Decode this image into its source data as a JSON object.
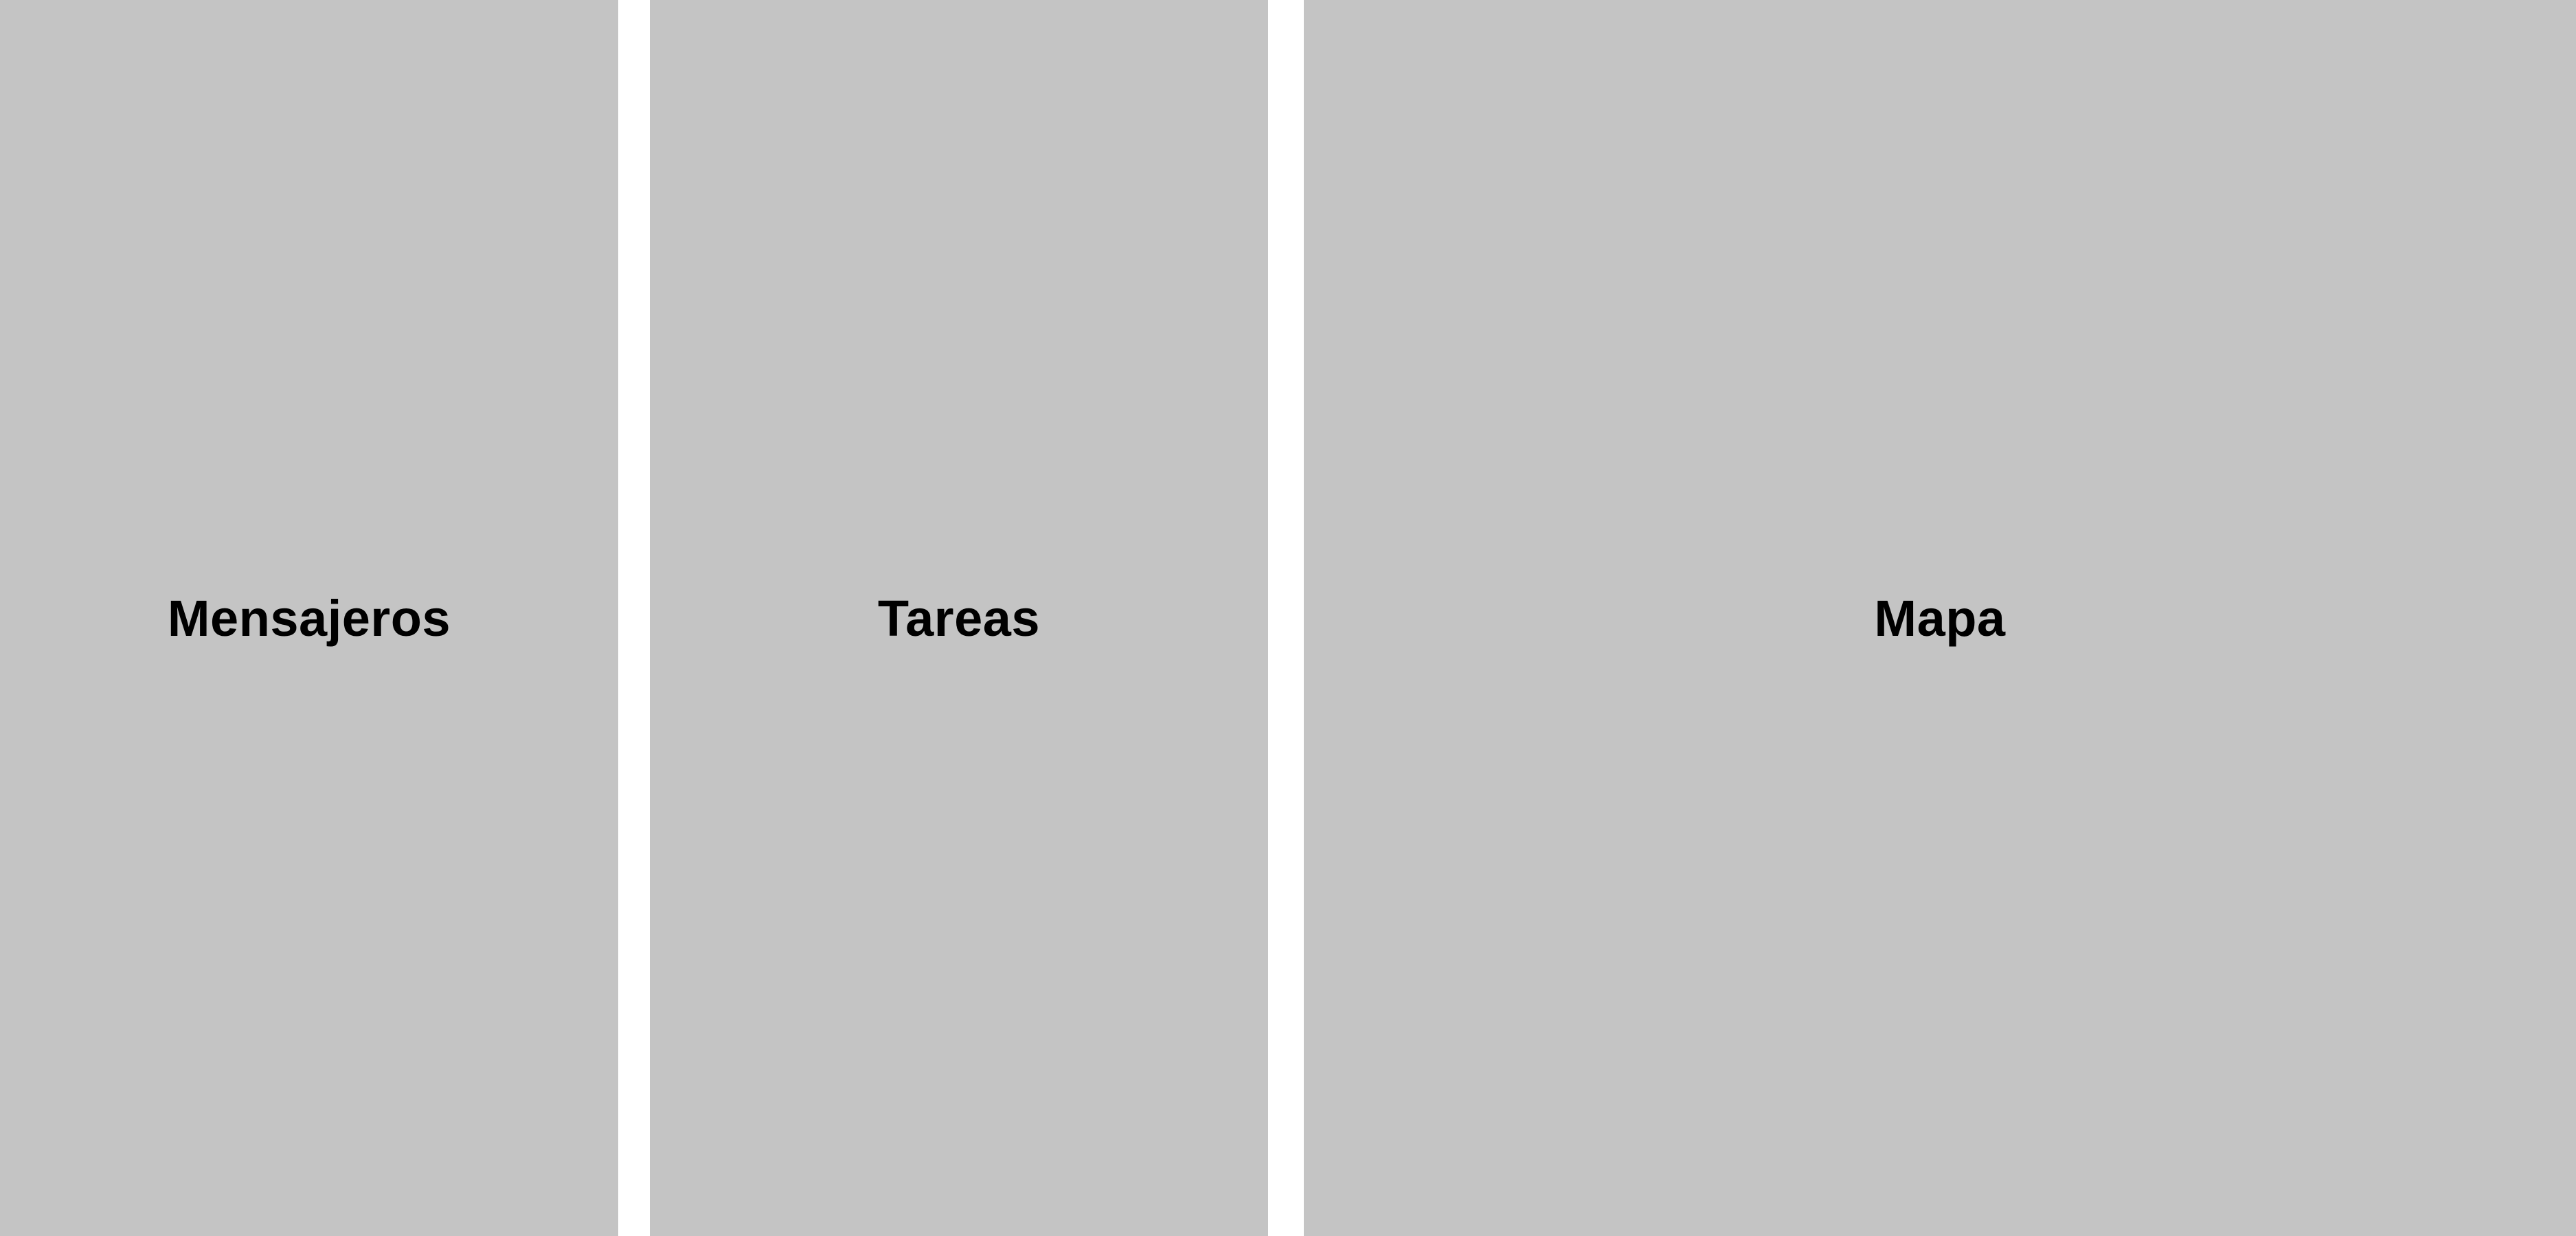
{
  "panels": {
    "messengers": {
      "label": "Mensajeros"
    },
    "tasks": {
      "label": "Tareas"
    },
    "map": {
      "label": "Mapa"
    }
  },
  "colors": {
    "panel_background": "#c4c4c4",
    "page_background": "#ffffff",
    "text": "#000000"
  }
}
